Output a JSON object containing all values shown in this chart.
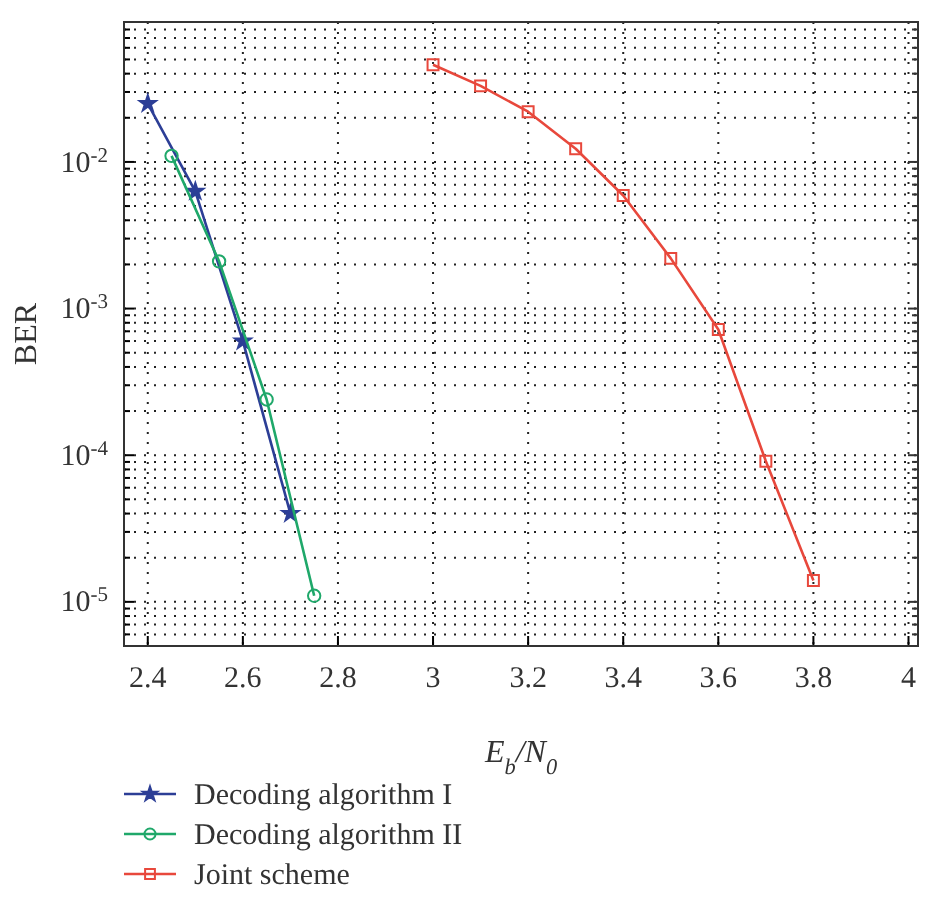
{
  "chart_data": {
    "type": "line",
    "xlabel": "E$_{b}$/N$_{0}$",
    "ylabel": "BER",
    "log": "y",
    "grid": true,
    "legend": "bottom",
    "xlim": [
      2.35,
      4.02
    ],
    "xticks": [
      2.4,
      2.6,
      2.8,
      3,
      3.2,
      3.4,
      3.6,
      3.8,
      4
    ],
    "ylim": [
      5e-06,
      0.09
    ],
    "yticks": [
      {
        "value": 6e-06,
        "label": null
      },
      {
        "value": 7e-06,
        "label": null
      },
      {
        "value": 8e-06,
        "label": null
      },
      {
        "value": 9e-06,
        "label": null
      },
      {
        "value": 1e-05,
        "label": "10$^{-5}$"
      },
      {
        "value": 2e-05,
        "label": null
      },
      {
        "value": 3e-05,
        "label": null
      },
      {
        "value": 4e-05,
        "label": null
      },
      {
        "value": 5e-05,
        "label": null
      },
      {
        "value": 6e-05,
        "label": null
      },
      {
        "value": 7e-05,
        "label": null
      },
      {
        "value": 8e-05,
        "label": null
      },
      {
        "value": 9e-05,
        "label": null
      },
      {
        "value": 0.0001,
        "label": "10$^{-4}$"
      },
      {
        "value": 0.0002,
        "label": null
      },
      {
        "value": 0.0003,
        "label": null
      },
      {
        "value": 0.0004,
        "label": null
      },
      {
        "value": 0.0005,
        "label": null
      },
      {
        "value": 0.0006,
        "label": null
      },
      {
        "value": 0.0007,
        "label": null
      },
      {
        "value": 0.0008,
        "label": null
      },
      {
        "value": 0.0009,
        "label": null
      },
      {
        "value": 0.001,
        "label": "10$^{-3}$"
      },
      {
        "value": 0.002,
        "label": null
      },
      {
        "value": 0.003,
        "label": null
      },
      {
        "value": 0.004,
        "label": null
      },
      {
        "value": 0.005,
        "label": null
      },
      {
        "value": 0.006,
        "label": null
      },
      {
        "value": 0.007,
        "label": null
      },
      {
        "value": 0.008,
        "label": null
      },
      {
        "value": 0.009,
        "label": null
      },
      {
        "value": 0.01,
        "label": "10$^{-2}$"
      },
      {
        "value": 0.02,
        "label": null
      },
      {
        "value": 0.03,
        "label": null
      },
      {
        "value": 0.04,
        "label": null
      },
      {
        "value": 0.05,
        "label": null
      },
      {
        "value": 0.06,
        "label": null
      },
      {
        "value": 0.07,
        "label": null
      },
      {
        "value": 0.08,
        "label": null
      }
    ],
    "series": [
      {
        "name": "Decoding algorithm I",
        "color": "#2c3e96",
        "marker": "star",
        "x": [
          2.4,
          2.5,
          2.6,
          2.7
        ],
        "values": [
          0.025,
          0.0063,
          0.0006,
          4e-05
        ]
      },
      {
        "name": "Decoding algorithm II",
        "color": "#1fa86a",
        "marker": "circle",
        "x": [
          2.45,
          2.55,
          2.65,
          2.75
        ],
        "values": [
          0.011,
          0.0021,
          0.00024,
          1.1e-05
        ]
      },
      {
        "name": "Joint scheme",
        "color": "#e8483c",
        "marker": "square",
        "x": [
          3,
          3.1,
          3.2,
          3.3,
          3.4,
          3.5,
          3.6,
          3.7,
          3.8
        ],
        "values": [
          0.046,
          0.033,
          0.022,
          0.0123,
          0.0059,
          0.0022,
          0.00072,
          9.1e-05,
          1.4e-05
        ]
      }
    ]
  }
}
